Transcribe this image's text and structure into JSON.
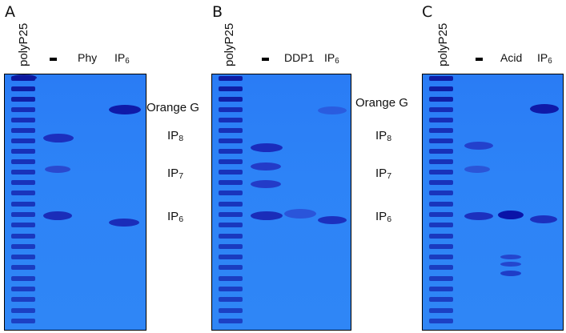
{
  "panels": [
    {
      "letter": "A",
      "ladder_label": "polyP25",
      "lanes": [
        "-",
        "Phy",
        "IP",
        "6"
      ]
    },
    {
      "letter": "B",
      "ladder_label": "polyP25",
      "lanes": [
        "-",
        "DDP1",
        "IP",
        "6"
      ]
    },
    {
      "letter": "C",
      "ladder_label": "polyP25",
      "lanes": [
        "-",
        "Acid",
        "IP",
        "6"
      ]
    }
  ],
  "labels": {
    "orange_g": "Orange G",
    "ip": "IP",
    "sub8": "8",
    "sub7": "7",
    "sub6": "6"
  },
  "colors": {
    "gel": "#2f86f6",
    "band": "#1a2bbf",
    "strong_band": "#0a14a8"
  }
}
